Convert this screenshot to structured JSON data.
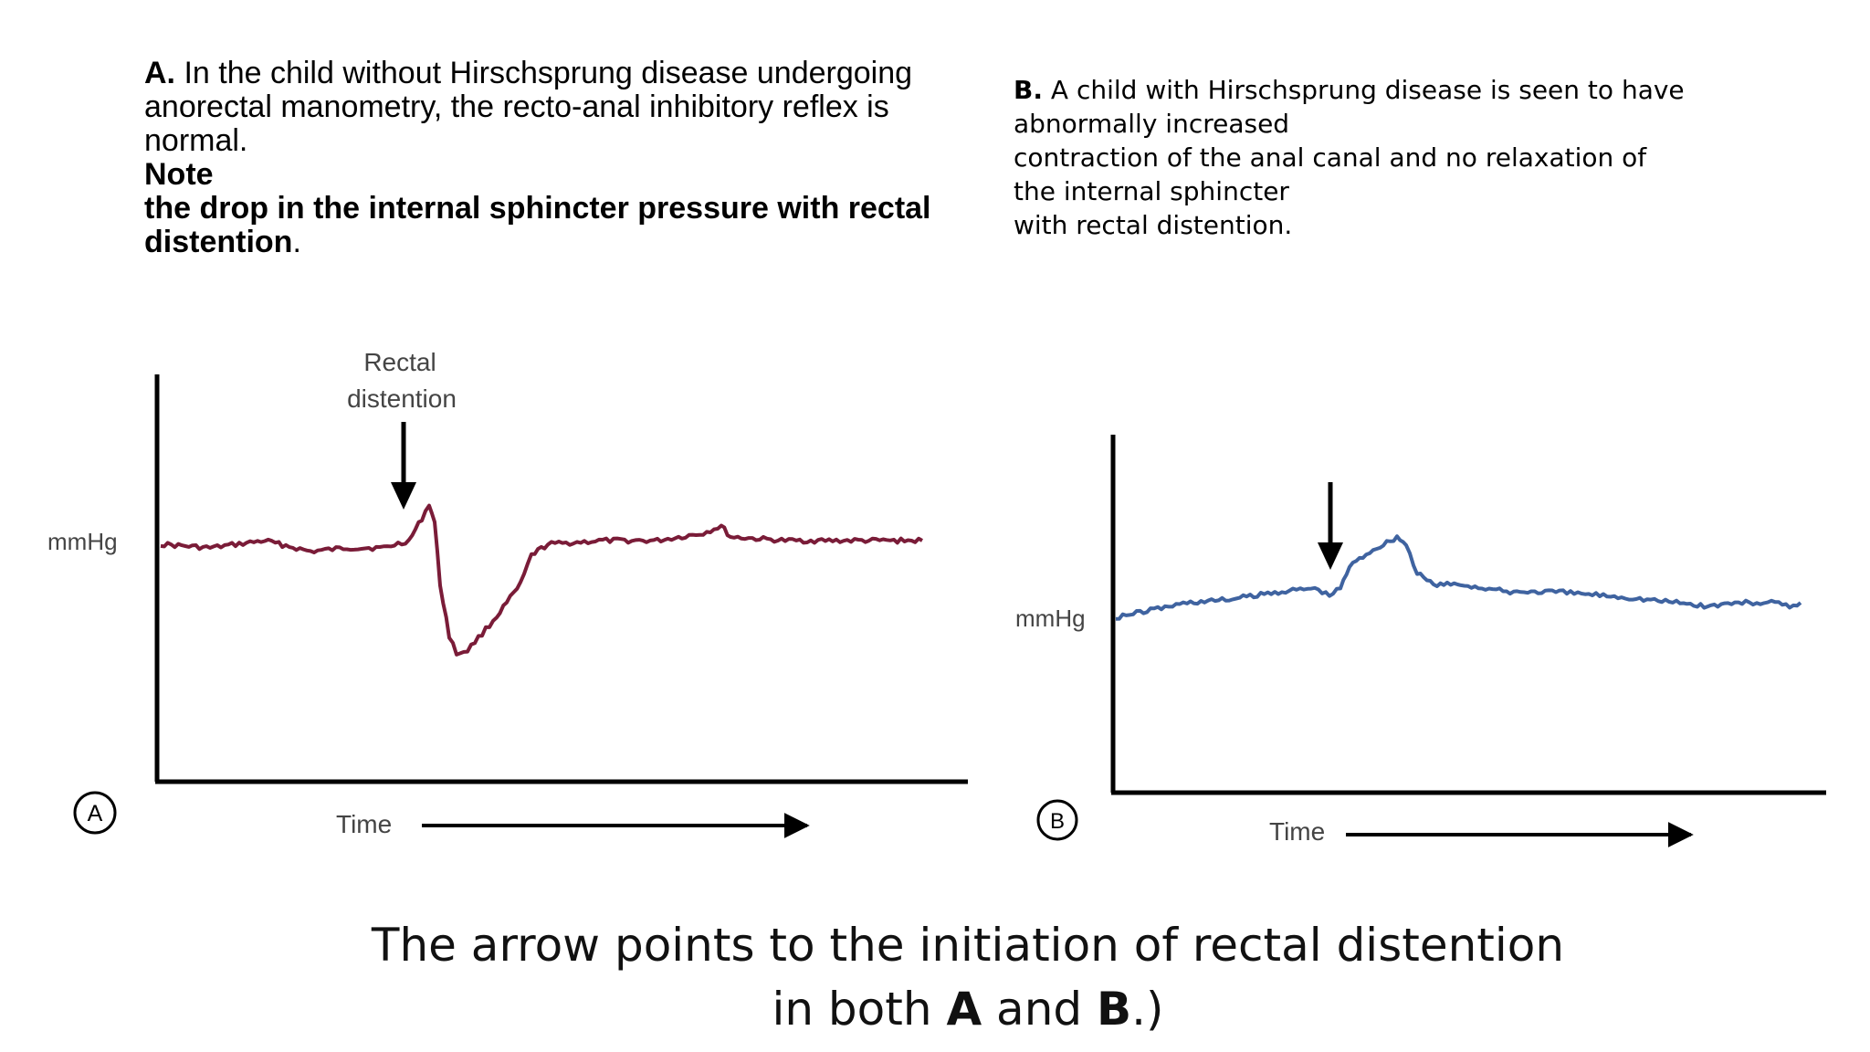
{
  "caption_a": {
    "letter": "A.",
    "text_line1": "In the child without Hirschsprung disease undergoing",
    "text_line2": "anorectal manometry, the recto-anal inhibitory reflex is",
    "text_line3": "normal.",
    "note": "Note",
    "bold_line1": "the drop in the internal sphincter pressure with rectal",
    "bold_line2": "distention",
    "period": "."
  },
  "caption_b": {
    "letter": "B.",
    "line1": "A child with Hirschsprung disease is seen to have",
    "line2": "abnormally increased",
    "line3": "contraction of the anal canal and no relaxation of",
    "line4": "the internal sphincter",
    "line5": "with rectal distention."
  },
  "panel_a": {
    "marker": "A",
    "annotation_line1": "Rectal",
    "annotation_line2": "distention",
    "y_label": "mmHg",
    "x_label": "Time",
    "trace_color": "#7a1c38"
  },
  "panel_b": {
    "marker": "B",
    "y_label": "mmHg",
    "x_label": "Time",
    "trace_color": "#3f63a0"
  },
  "footer": {
    "line1": "The arrow points to the initiation of rectal distention",
    "line2_prefix": "in both ",
    "a": "A",
    "and": " and ",
    "b": "B",
    "suffix": ".)"
  }
}
